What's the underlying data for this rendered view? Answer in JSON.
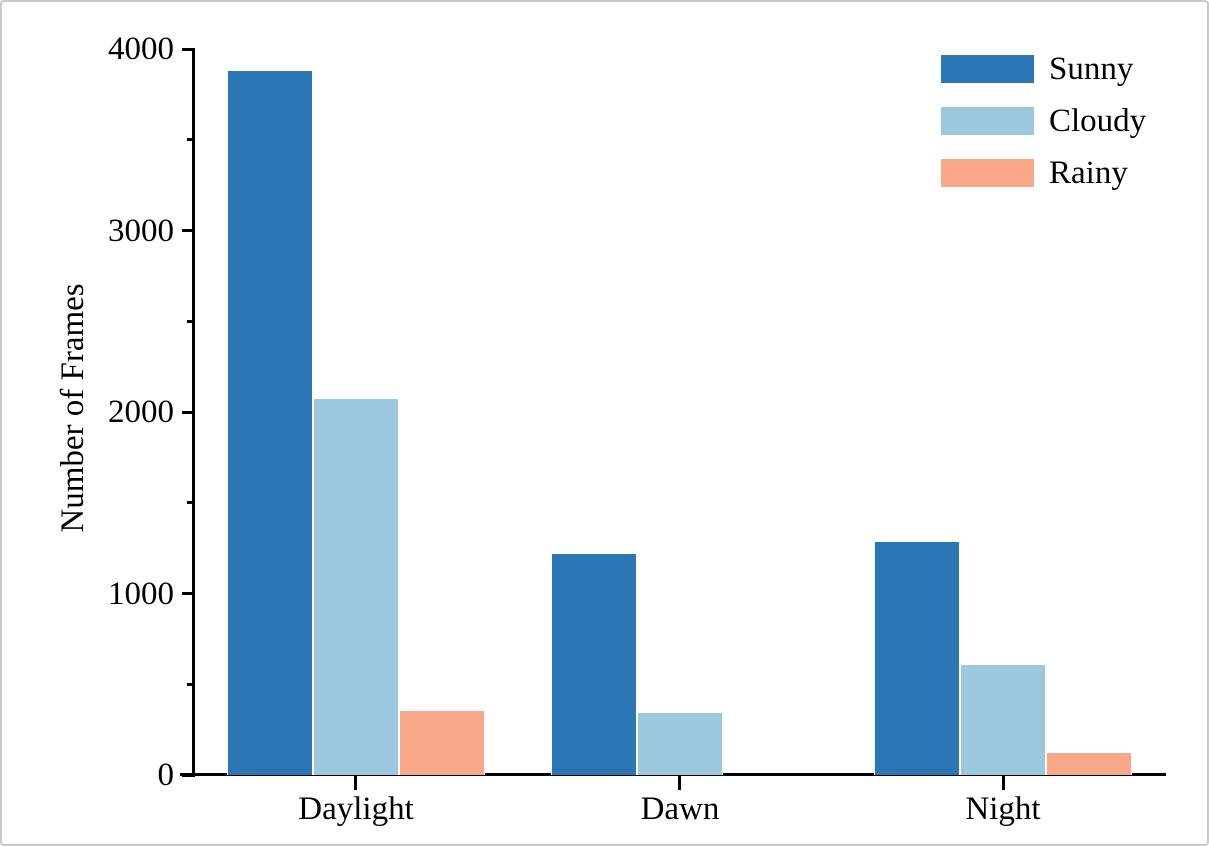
{
  "chart_data": {
    "type": "bar",
    "title": "",
    "xlabel": "",
    "ylabel": "Number of Frames",
    "categories": [
      "Daylight",
      "Dawn",
      "Night"
    ],
    "series": [
      {
        "name": "Sunny",
        "color": "#2b76b4",
        "values": [
          3880,
          1220,
          1285
        ]
      },
      {
        "name": "Cloudy",
        "color": "#9bc8dc",
        "values": [
          2070,
          340,
          605
        ]
      },
      {
        "name": "Rainy",
        "color": "#f7a888",
        "values": [
          350,
          0,
          120
        ]
      }
    ],
    "ylim": [
      0,
      4000
    ],
    "yticks": [
      0,
      1000,
      2000,
      3000,
      4000
    ],
    "ytick_minor_step": 500,
    "grid": false,
    "legend_position": "upper-right",
    "axis_color": "#000000",
    "background_color": "#ffffff"
  }
}
